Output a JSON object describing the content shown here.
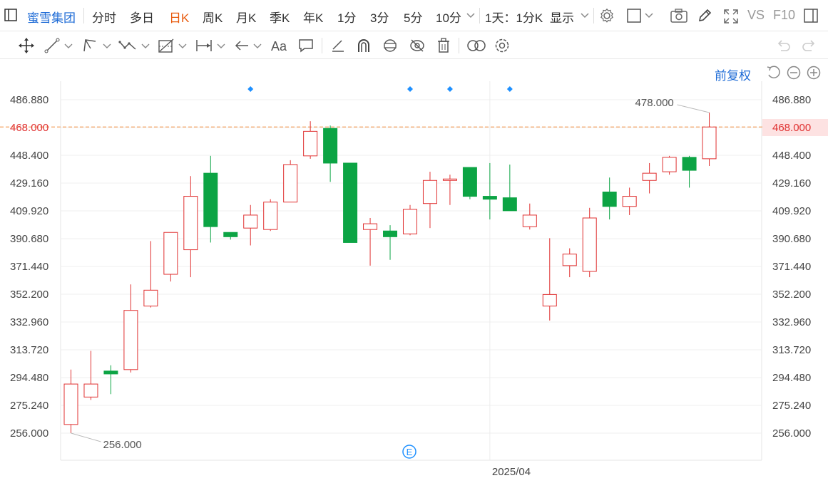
{
  "toolbar": {
    "title": "蜜雪集团",
    "periods": [
      "分时",
      "多日",
      "日K",
      "周K",
      "月K",
      "季K",
      "年K",
      "1分",
      "3分",
      "5分",
      "10分"
    ],
    "active_period": "日K",
    "interval_label": "1天：1分K",
    "display_label": "显示",
    "vs_label": "VS",
    "f10_label": "F10"
  },
  "adjust_label": "前复权",
  "colors": {
    "up": "#e03131",
    "down": "#0ca444",
    "accent": "#e8590c",
    "link": "#1e6bd6",
    "dash": "#f4a261",
    "marker": "#1e90ff"
  },
  "chart_data": {
    "type": "candlestick",
    "y_ticks": [
      "486.880",
      "468.000",
      "448.400",
      "429.160",
      "409.920",
      "390.680",
      "371.440",
      "352.200",
      "332.960",
      "313.720",
      "294.480",
      "275.240",
      "256.000"
    ],
    "ylim": [
      256.0,
      486.88
    ],
    "current_price_label": "468.000",
    "current_price": 468.0,
    "x_label": "2025/04",
    "x_label_index": 21,
    "high_label": "478.000",
    "low_label": "256.000",
    "event_marker": "E",
    "candles": [
      {
        "o": 262,
        "h": 300,
        "l": 256,
        "c": 290
      },
      {
        "o": 281,
        "h": 313,
        "l": 279,
        "c": 290
      },
      {
        "o": 299,
        "h": 303,
        "l": 283,
        "c": 297
      },
      {
        "o": 300,
        "h": 359,
        "l": 298,
        "c": 341
      },
      {
        "o": 344,
        "h": 389,
        "l": 343,
        "c": 355
      },
      {
        "o": 366,
        "h": 395,
        "l": 361,
        "c": 395
      },
      {
        "o": 383,
        "h": 434,
        "l": 364,
        "c": 420
      },
      {
        "o": 436,
        "h": 448,
        "l": 388,
        "c": 399
      },
      {
        "o": 395,
        "h": 395,
        "l": 390,
        "c": 392
      },
      {
        "o": 398,
        "h": 414,
        "l": 386,
        "c": 407
      },
      {
        "o": 397,
        "h": 418,
        "l": 396,
        "c": 416
      },
      {
        "o": 416,
        "h": 445,
        "l": 416,
        "c": 442
      },
      {
        "o": 448,
        "h": 472,
        "l": 446,
        "c": 465
      },
      {
        "o": 467,
        "h": 469,
        "l": 430,
        "c": 443
      },
      {
        "o": 443,
        "h": 443,
        "l": 388,
        "c": 388
      },
      {
        "o": 397,
        "h": 405,
        "l": 372,
        "c": 401
      },
      {
        "o": 396,
        "h": 400,
        "l": 376,
        "c": 392
      },
      {
        "o": 394,
        "h": 414,
        "l": 393,
        "c": 411
      },
      {
        "o": 415,
        "h": 437,
        "l": 398,
        "c": 431
      },
      {
        "o": 431,
        "h": 435,
        "l": 414,
        "c": 432
      },
      {
        "o": 440,
        "h": 440,
        "l": 418,
        "c": 420
      },
      {
        "o": 420,
        "h": 443,
        "l": 404,
        "c": 418
      },
      {
        "o": 419,
        "h": 442,
        "l": 410,
        "c": 410
      },
      {
        "o": 399,
        "h": 415,
        "l": 397,
        "c": 407
      },
      {
        "o": 344,
        "h": 391,
        "l": 334,
        "c": 352
      },
      {
        "o": 372,
        "h": 384,
        "l": 364,
        "c": 380
      },
      {
        "o": 368,
        "h": 412,
        "l": 364,
        "c": 405
      },
      {
        "o": 423,
        "h": 433,
        "l": 404,
        "c": 413
      },
      {
        "o": 413,
        "h": 426,
        "l": 407,
        "c": 420
      },
      {
        "o": 431,
        "h": 443,
        "l": 422,
        "c": 436
      },
      {
        "o": 437,
        "h": 448,
        "l": 435,
        "c": 447
      },
      {
        "o": 447,
        "h": 448,
        "l": 426,
        "c": 438
      },
      {
        "o": 446,
        "h": 478,
        "l": 441,
        "c": 468
      }
    ],
    "marker_indices": [
      9,
      17,
      19,
      22
    ]
  }
}
